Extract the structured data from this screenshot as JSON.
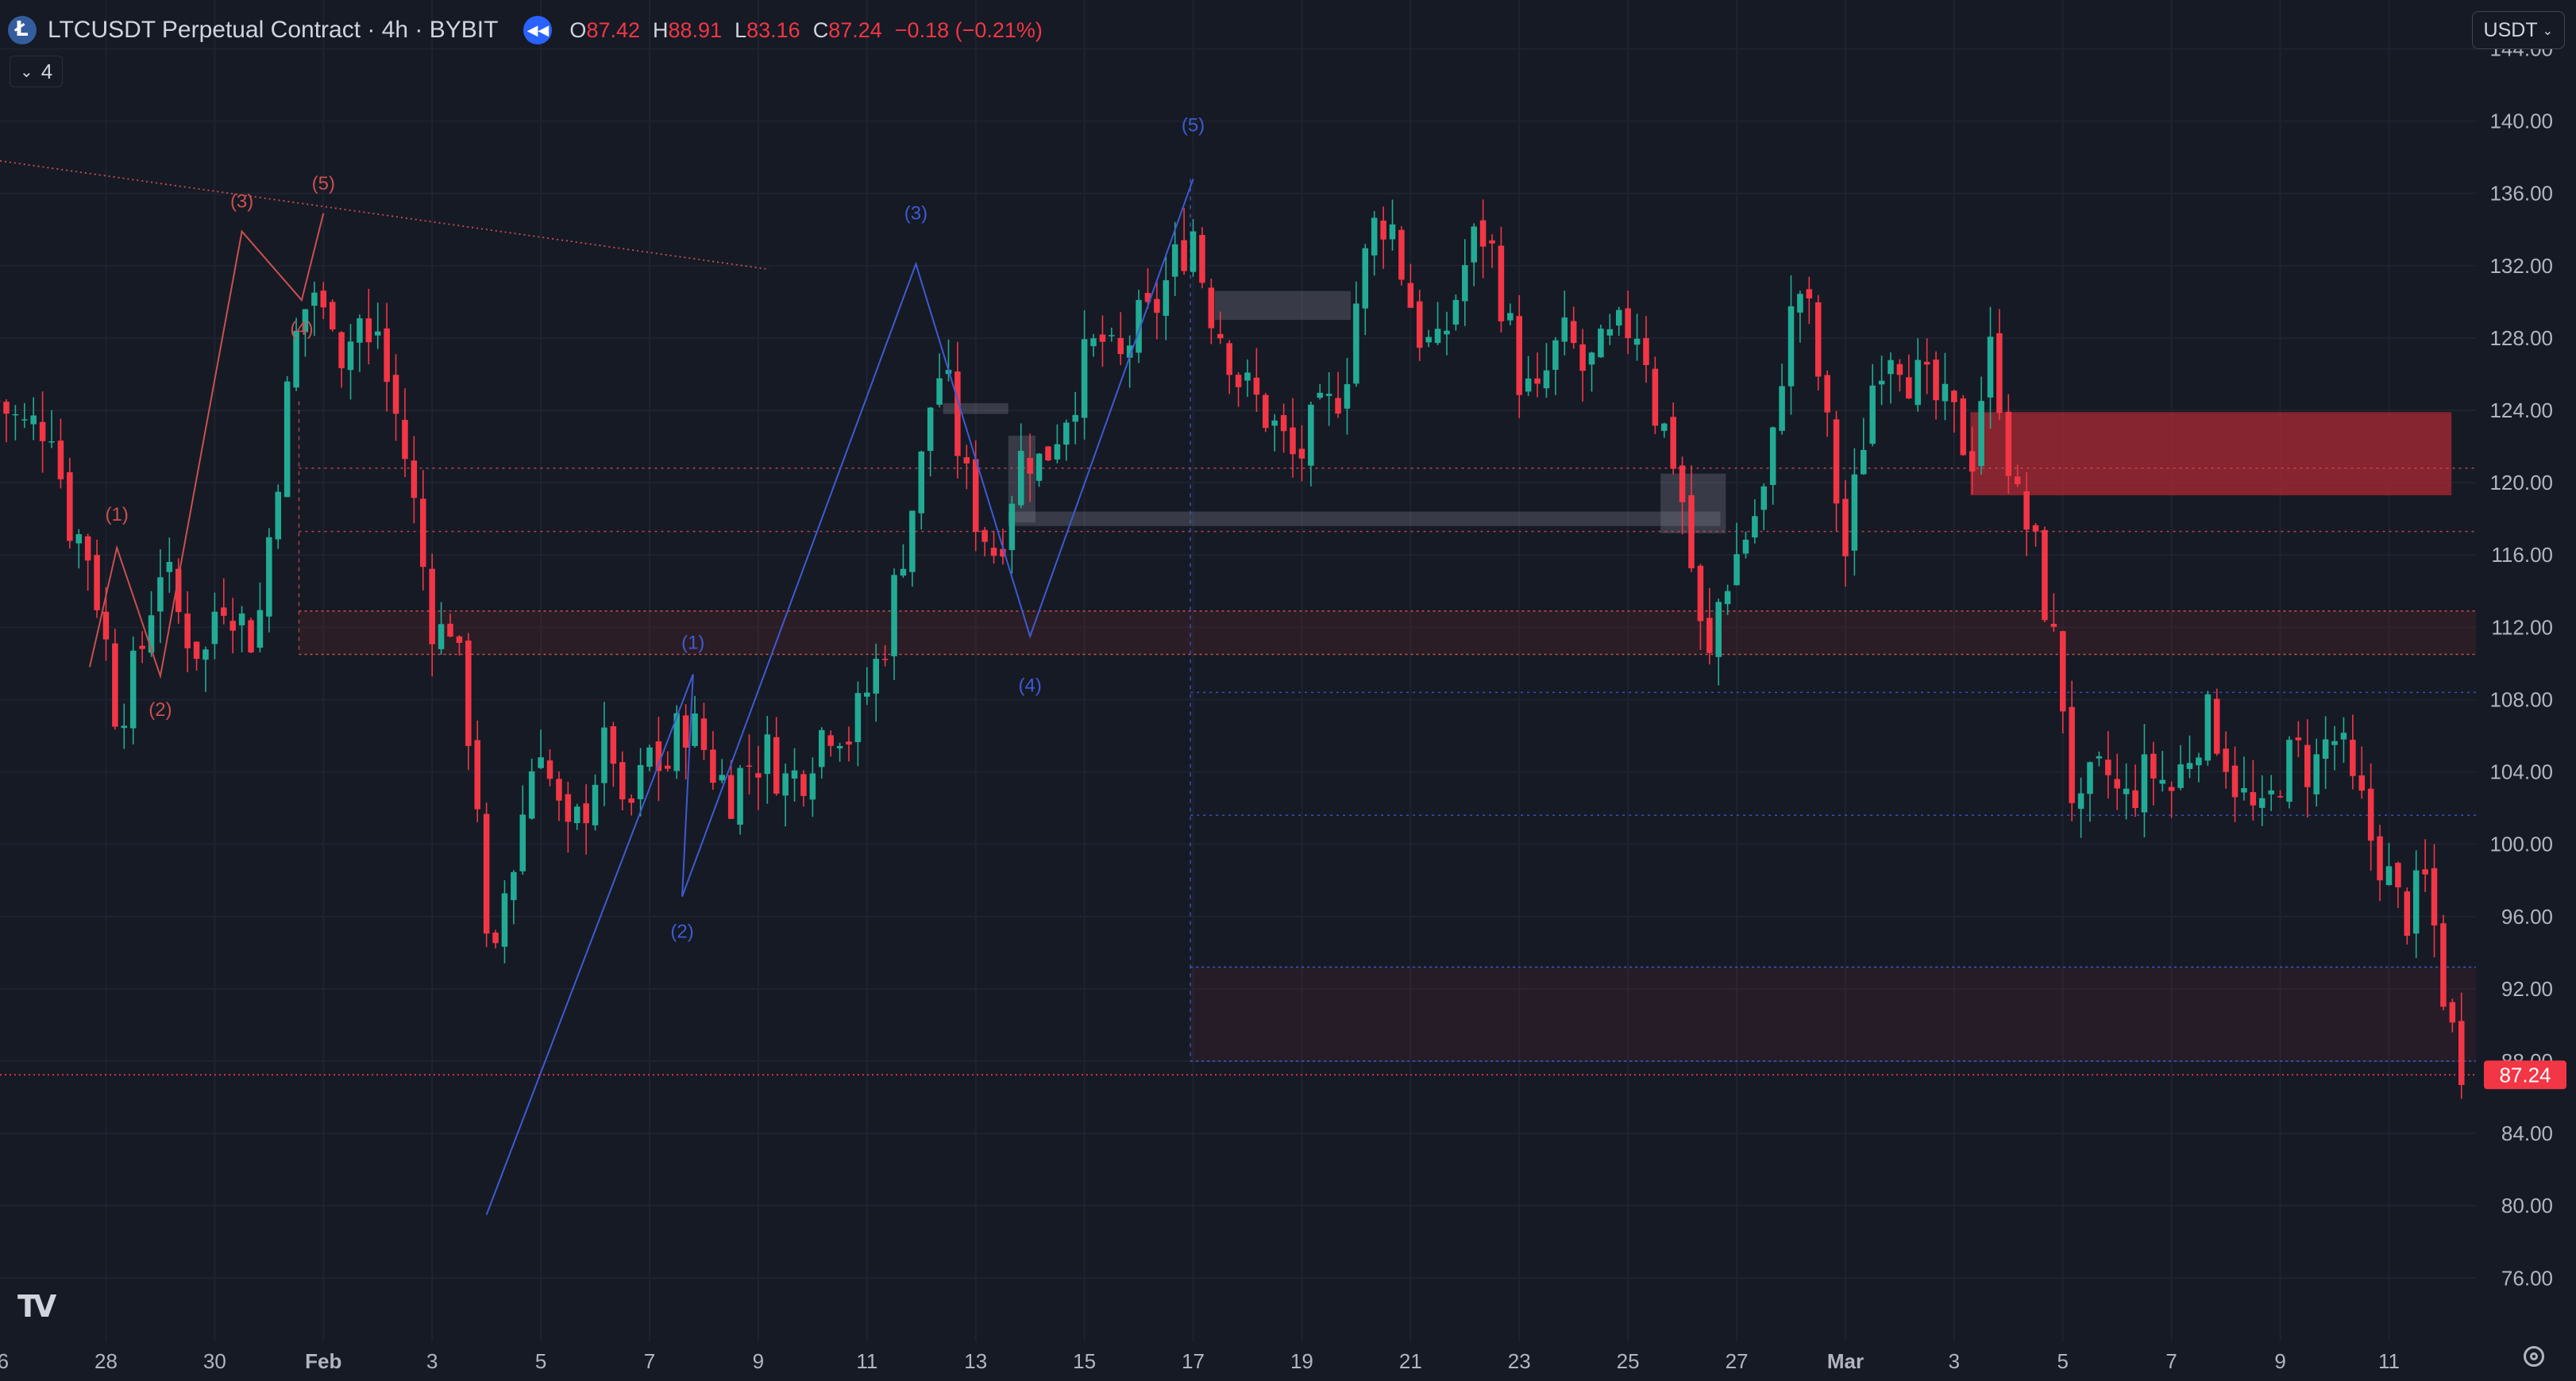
{
  "header": {
    "symbol": "LTCUSDT Perpetual Contract · 4h · BYBIT",
    "open_label": "O",
    "open": "87.42",
    "high_label": "H",
    "high": "88.91",
    "low_label": "L",
    "low": "83.16",
    "close_label": "C",
    "close": "87.24",
    "change": "−0.18 (−0.21%)",
    "indicator_count": "4",
    "currency": "USDT"
  },
  "icons": {
    "symbol": "litecoin-icon",
    "replay": "replay-icon",
    "indicators": "chevron-down-icon",
    "currency": "chevron-down-icon",
    "logo": "tradingview-logo",
    "settings": "gear-icon"
  },
  "colors": {
    "background": "#161a25",
    "up": "#22ab94",
    "down": "#f23645",
    "grid": "#1f2330",
    "wave_red": "#c9504f",
    "wave_blue": "#3d5bd1",
    "last_price_badge": "#f23645"
  },
  "chart_data": {
    "type": "candlestick",
    "price_scale": {
      "ticks": [
        "144.00",
        "140.00",
        "136.00",
        "132.00",
        "128.00",
        "124.00",
        "120.00",
        "116.00",
        "112.00",
        "108.00",
        "104.00",
        "100.00",
        "96.00",
        "92.00",
        "88.00",
        "84.00",
        "80.00",
        "76.00"
      ],
      "range": [
        72.5,
        146.7
      ]
    },
    "time_axis": {
      "labels": [
        "26",
        "28",
        "30",
        "Feb",
        "3",
        "5",
        "7",
        "9",
        "11",
        "13",
        "15",
        "17",
        "19",
        "21",
        "23",
        "25",
        "27",
        "Mar",
        "3",
        "5",
        "7",
        "9",
        "11"
      ],
      "label_x_days": [
        -1,
        1,
        3,
        5,
        7,
        9,
        11,
        13,
        15,
        17,
        19,
        21,
        23,
        25,
        27,
        29,
        31,
        33,
        35,
        37,
        39,
        41,
        43
      ],
      "day_range": [
        -0.95,
        44.6
      ],
      "date_convention": "x in days, 0 = Jan 27"
    },
    "last_price": 87.24,
    "last_price_label": "87.24",
    "anchors": [
      [
        -1.0,
        124.5
      ],
      [
        -0.5,
        123
      ],
      [
        0,
        123.5
      ],
      [
        0.3,
        118
      ],
      [
        0.7,
        116
      ],
      [
        1.0,
        111
      ],
      [
        1.2,
        107
      ],
      [
        1.4,
        108.5
      ],
      [
        1.6,
        110
      ],
      [
        1.8,
        113
      ],
      [
        2.0,
        115.5
      ],
      [
        2.2,
        114
      ],
      [
        2.4,
        112
      ],
      [
        2.6,
        111.5
      ],
      [
        2.8,
        110
      ],
      [
        3.0,
        113
      ],
      [
        3.2,
        114
      ],
      [
        3.4,
        113
      ],
      [
        3.6,
        111.5
      ],
      [
        3.8,
        112
      ],
      [
        4.0,
        117
      ],
      [
        4.3,
        124
      ],
      [
        4.5,
        128
      ],
      [
        4.8,
        131
      ],
      [
        5.0,
        129
      ],
      [
        5.2,
        130
      ],
      [
        5.4,
        126
      ],
      [
        5.6,
        130
      ],
      [
        5.8,
        127
      ],
      [
        6.0,
        128.5
      ],
      [
        6.2,
        125
      ],
      [
        6.4,
        123
      ],
      [
        6.6,
        120
      ],
      [
        6.9,
        114
      ],
      [
        7.1,
        111
      ],
      [
        7.3,
        113
      ],
      [
        7.6,
        108
      ],
      [
        7.9,
        101
      ],
      [
        8.0,
        94
      ],
      [
        8.15,
        92.8
      ],
      [
        8.3,
        97
      ],
      [
        8.5,
        99
      ],
      [
        8.8,
        104
      ],
      [
        9.0,
        106
      ],
      [
        9.2,
        103
      ],
      [
        9.5,
        100
      ],
      [
        9.8,
        102
      ],
      [
        10.0,
        104
      ],
      [
        10.3,
        106
      ],
      [
        10.5,
        101
      ],
      [
        10.8,
        103
      ],
      [
        11.0,
        105
      ],
      [
        11.3,
        104
      ],
      [
        11.6,
        107
      ],
      [
        11.9,
        106
      ],
      [
        12.2,
        104
      ],
      [
        12.5,
        103
      ],
      [
        12.8,
        104.5
      ],
      [
        13.2,
        105
      ],
      [
        13.5,
        103.5
      ],
      [
        13.8,
        104
      ],
      [
        14.1,
        106
      ],
      [
        14.4,
        107
      ],
      [
        14.7,
        106
      ],
      [
        15.0,
        108.5
      ],
      [
        15.3,
        111
      ],
      [
        15.7,
        117
      ],
      [
        16.0,
        121
      ],
      [
        16.2,
        125
      ],
      [
        16.4,
        126.5
      ],
      [
        16.6,
        123
      ],
      [
        16.9,
        119
      ],
      [
        17.2,
        117
      ],
      [
        17.4,
        116
      ],
      [
        17.6,
        119
      ],
      [
        17.9,
        122
      ],
      [
        18.2,
        121
      ],
      [
        18.5,
        123
      ],
      [
        18.8,
        125
      ],
      [
        19.0,
        126.5
      ],
      [
        19.3,
        128
      ],
      [
        19.6,
        126
      ],
      [
        19.9,
        128.5
      ],
      [
        20.2,
        129
      ],
      [
        20.5,
        131
      ],
      [
        20.8,
        133
      ],
      [
        21.0,
        134
      ],
      [
        21.2,
        131
      ],
      [
        21.4,
        129
      ],
      [
        21.6,
        128
      ],
      [
        21.8,
        126
      ],
      [
        22.0,
        125
      ],
      [
        22.3,
        124
      ],
      [
        22.6,
        122.5
      ],
      [
        22.9,
        121
      ],
      [
        23.2,
        123
      ],
      [
        23.5,
        124
      ],
      [
        23.8,
        126
      ],
      [
        24.0,
        130
      ],
      [
        24.3,
        134
      ],
      [
        24.6,
        135
      ],
      [
        24.9,
        131
      ],
      [
        25.2,
        128
      ],
      [
        25.5,
        127
      ],
      [
        25.8,
        130
      ],
      [
        26.1,
        133
      ],
      [
        26.4,
        134
      ],
      [
        26.7,
        130
      ],
      [
        27.0,
        126
      ],
      [
        27.3,
        124
      ],
      [
        27.6,
        127
      ],
      [
        27.9,
        128
      ],
      [
        28.2,
        126
      ],
      [
        28.5,
        127
      ],
      [
        28.8,
        128
      ],
      [
        29.1,
        129
      ],
      [
        29.3,
        128
      ],
      [
        29.5,
        124
      ],
      [
        29.8,
        122
      ],
      [
        30.0,
        119
      ],
      [
        30.1,
        117
      ],
      [
        30.3,
        112
      ],
      [
        30.5,
        110
      ],
      [
        30.7,
        114
      ],
      [
        31.0,
        116
      ],
      [
        31.3,
        118
      ],
      [
        31.6,
        120
      ],
      [
        31.8,
        126
      ],
      [
        32.0,
        129
      ],
      [
        32.2,
        131
      ],
      [
        32.4,
        128
      ],
      [
        32.6,
        124
      ],
      [
        32.8,
        120
      ],
      [
        33.0,
        116
      ],
      [
        33.2,
        120
      ],
      [
        33.4,
        124
      ],
      [
        33.6,
        127
      ],
      [
        33.9,
        128
      ],
      [
        34.2,
        126
      ],
      [
        34.5,
        125
      ],
      [
        34.8,
        124
      ],
      [
        35.1,
        123
      ],
      [
        35.3,
        121
      ],
      [
        35.5,
        125
      ],
      [
        35.7,
        127.5
      ],
      [
        35.9,
        124
      ],
      [
        36.1,
        119
      ],
      [
        36.3,
        118
      ],
      [
        36.5,
        116
      ],
      [
        36.7,
        113
      ],
      [
        36.9,
        110
      ],
      [
        37.0,
        108
      ],
      [
        37.1,
        104
      ],
      [
        37.3,
        101
      ],
      [
        37.5,
        103
      ],
      [
        37.8,
        104
      ],
      [
        38.1,
        102
      ],
      [
        38.4,
        103.5
      ],
      [
        38.7,
        104
      ],
      [
        39.0,
        103
      ],
      [
        39.3,
        105
      ],
      [
        39.6,
        107
      ],
      [
        39.9,
        106
      ],
      [
        40.1,
        104
      ],
      [
        40.4,
        102
      ],
      [
        40.7,
        101
      ],
      [
        41.0,
        104
      ],
      [
        41.3,
        105
      ],
      [
        41.6,
        104
      ],
      [
        41.9,
        106
      ],
      [
        42.1,
        105.5
      ],
      [
        42.3,
        103
      ],
      [
        42.5,
        102
      ],
      [
        42.7,
        100
      ],
      [
        42.9,
        99
      ],
      [
        43.1,
        97
      ],
      [
        43.3,
        96
      ],
      [
        43.5,
        97
      ],
      [
        43.7,
        98
      ],
      [
        43.9,
        94
      ],
      [
        44.1,
        90
      ],
      [
        44.3,
        88.5
      ],
      [
        44.4,
        87.2
      ]
    ],
    "elliott_red": {
      "points": [
        [
          0.7,
          109.8
        ],
        [
          1.2,
          116.4
        ],
        [
          2.0,
          109.3
        ],
        [
          3.5,
          133.9
        ],
        [
          4.6,
          130.1
        ],
        [
          5.0,
          134.9
        ]
      ],
      "labels": [
        "(1)",
        "(2)",
        "(3)",
        "(4)",
        "(5)"
      ]
    },
    "elliott_blue_1": {
      "points": [
        [
          8.0,
          79.5
        ],
        [
          11.8,
          109.4
        ],
        [
          11.6,
          97.1
        ],
        [
          15.9,
          132.1
        ],
        [
          18.0,
          111.5
        ],
        [
          21.0,
          136.8
        ]
      ],
      "labels": [
        "(1)",
        "(2)",
        "(3)",
        "(4)",
        "(5)"
      ]
    },
    "trendline": {
      "from": [
        -0.95,
        137.8
      ],
      "to": [
        13.2,
        131.8
      ]
    },
    "zones": [
      {
        "name": "supply-zone-red",
        "x": [
          35.3,
          44.15
        ],
        "y": [
          119.3,
          123.9
        ],
        "color": "#8a2f35"
      },
      {
        "name": "range-zone-upper",
        "x": [
          4.55,
          44.6
        ],
        "y": [
          110.5,
          112.9
        ]
      },
      {
        "name": "range-zone-lower",
        "x": [
          20.95,
          44.6
        ],
        "y": [
          88.0,
          93.2
        ]
      },
      {
        "name": "fvg-grey-1",
        "x": [
          21.4,
          23.9
        ],
        "y": [
          129.0,
          130.6
        ]
      },
      {
        "name": "fvg-grey-2",
        "x": [
          17.6,
          30.7
        ],
        "y": [
          117.6,
          118.4
        ]
      },
      {
        "name": "fvg-grey-3",
        "x": [
          29.6,
          30.8
        ],
        "y": [
          117.2,
          120.5
        ]
      },
      {
        "name": "fvg-grey-4",
        "x": [
          16.4,
          17.6
        ],
        "y": [
          123.8,
          124.4
        ]
      },
      {
        "name": "fvg-grey-5",
        "x": [
          17.6,
          18.1
        ],
        "y": [
          117.8,
          122.6
        ]
      }
    ],
    "levels": [
      {
        "y": 120.8,
        "x": [
          4.55,
          44.6
        ],
        "color": "#c9504f"
      },
      {
        "y": 117.3,
        "x": [
          4.55,
          44.6
        ],
        "color": "#c9504f"
      },
      {
        "y": 108.4,
        "x": [
          20.95,
          44.6
        ],
        "color": "#3d5bd1"
      },
      {
        "y": 101.6,
        "x": [
          20.95,
          44.6
        ],
        "color": "#3d5bd1"
      }
    ],
    "vertical_markers": [
      {
        "x": 4.55,
        "y": [
          110.5,
          124.5
        ],
        "color": "#c9504f"
      },
      {
        "x": 20.95,
        "y": [
          88.0,
          136.8
        ],
        "color": "#3d5bd1"
      }
    ]
  }
}
